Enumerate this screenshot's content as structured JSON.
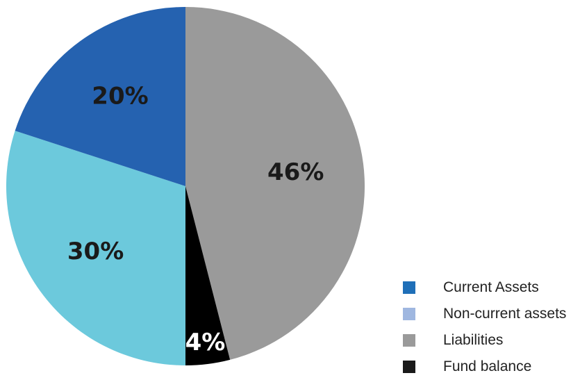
{
  "chart_data": {
    "type": "pie",
    "slices": [
      {
        "label": "Liabilities",
        "value": 46,
        "value_label": "46%",
        "color": "#9a9a9a",
        "label_color": "#1a1a1a"
      },
      {
        "label": "Fund balance",
        "value": 4,
        "value_label": "4%",
        "color": "#000000",
        "label_color": "#ffffff"
      },
      {
        "label": "",
        "value": 30,
        "value_label": "30%",
        "color": "#6cc9dc",
        "label_color": "#1a1a1a"
      },
      {
        "label": "Current Assets",
        "value": 20,
        "value_label": "20%",
        "color": "#2562b0",
        "label_color": "#1a1a1a"
      }
    ],
    "legend": {
      "placement": "bottom-right",
      "entries": [
        {
          "label": "Current Assets",
          "color": "#1f6fb8"
        },
        {
          "label": "Non-current assets",
          "color": "#9fb7e0"
        },
        {
          "label": "Liabilities",
          "color": "#9a9a9a"
        },
        {
          "label": "Fund balance",
          "color": "#1a1a1a"
        }
      ]
    }
  }
}
